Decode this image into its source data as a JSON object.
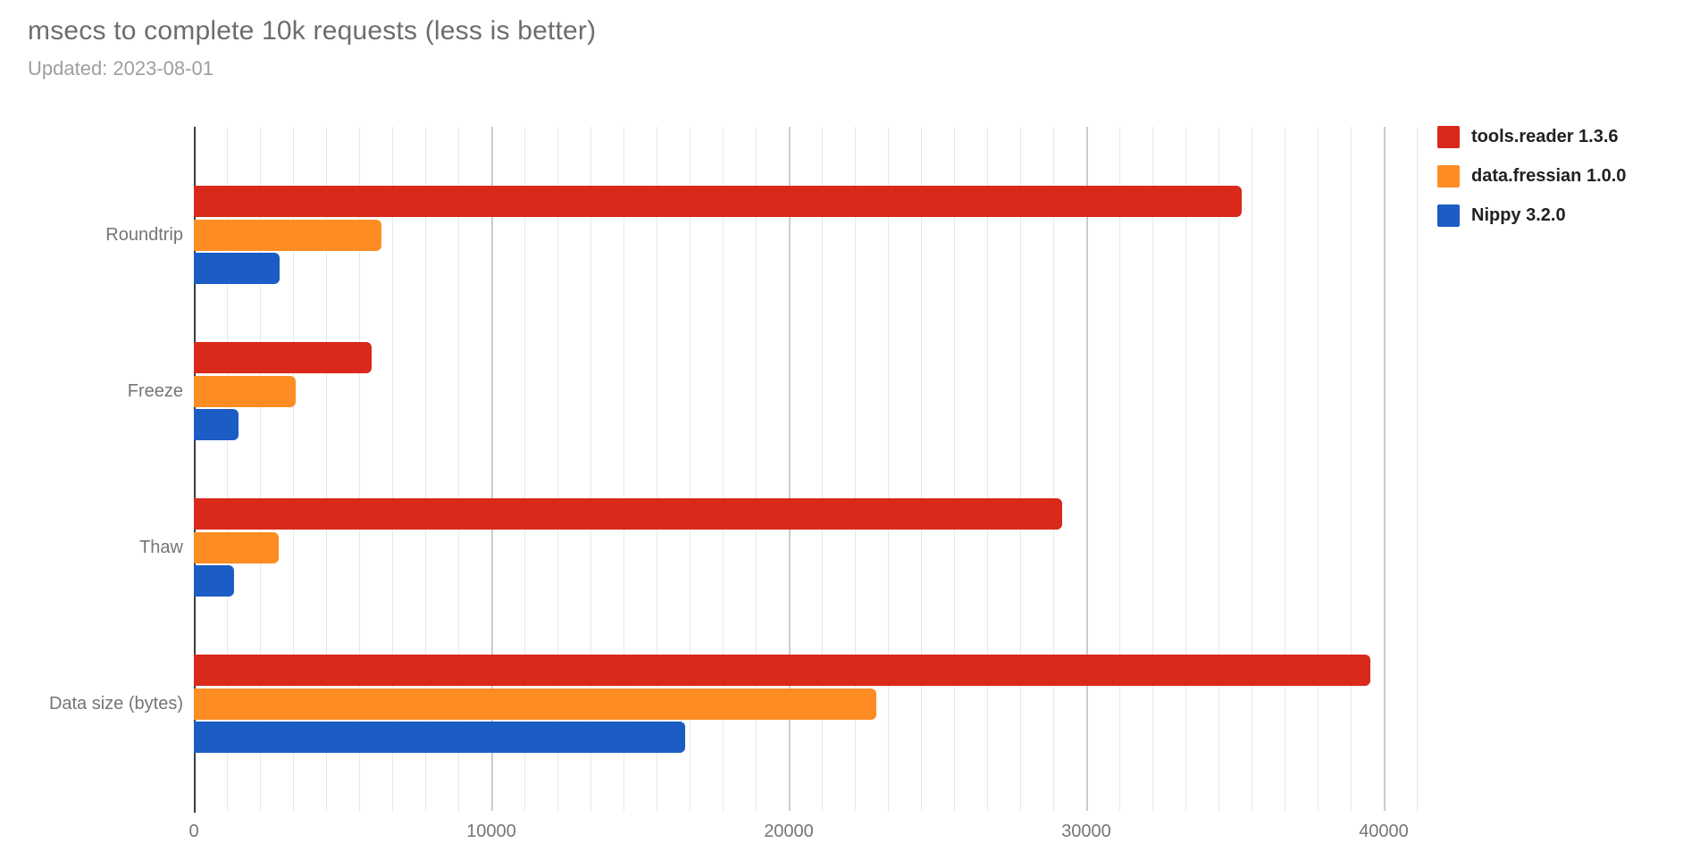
{
  "header": {
    "title": "msecs to complete 10k requests (less is better)",
    "subtitle": "Updated: 2023-08-01"
  },
  "chart_data": {
    "type": "bar",
    "orientation": "horizontal",
    "title": "msecs to complete 10k requests (less is better)",
    "subtitle": "Updated: 2023-08-01",
    "categories": [
      "Roundtrip",
      "Freeze",
      "Thaw",
      "Data size (bytes)"
    ],
    "series": [
      {
        "name": "tools.reader 1.3.6",
        "color": "#d8291b",
        "values": [
          35210,
          5970,
          29200,
          39550
        ]
      },
      {
        "name": "data.fressian 1.0.0",
        "color": "#fd8d23",
        "values": [
          6300,
          3430,
          2840,
          22940
        ]
      },
      {
        "name": "Nippy 3.2.0",
        "color": "#1b5cc5",
        "values": [
          2870,
          1510,
          1340,
          16510
        ]
      }
    ],
    "x_axis": {
      "tick_values": [
        0,
        10000,
        20000,
        30000,
        40000
      ],
      "tick_labels": [
        "0",
        "10000",
        "20000",
        "30000",
        "40000"
      ],
      "min": 0,
      "max": 41530,
      "minor_gridline_step": 1111
    },
    "ylabel": "",
    "xlabel": "",
    "legend_position": "top-right",
    "grid": true,
    "colors": {
      "title_text": "#6d6d6d",
      "subtitle_text": "#9e9e9e",
      "axis_text": "#757575",
      "legend_text": "#212121",
      "minor_gridline": "#e8e8e8",
      "major_gridline": "#cccccc",
      "zero_axis": "#3c3c3c"
    }
  }
}
